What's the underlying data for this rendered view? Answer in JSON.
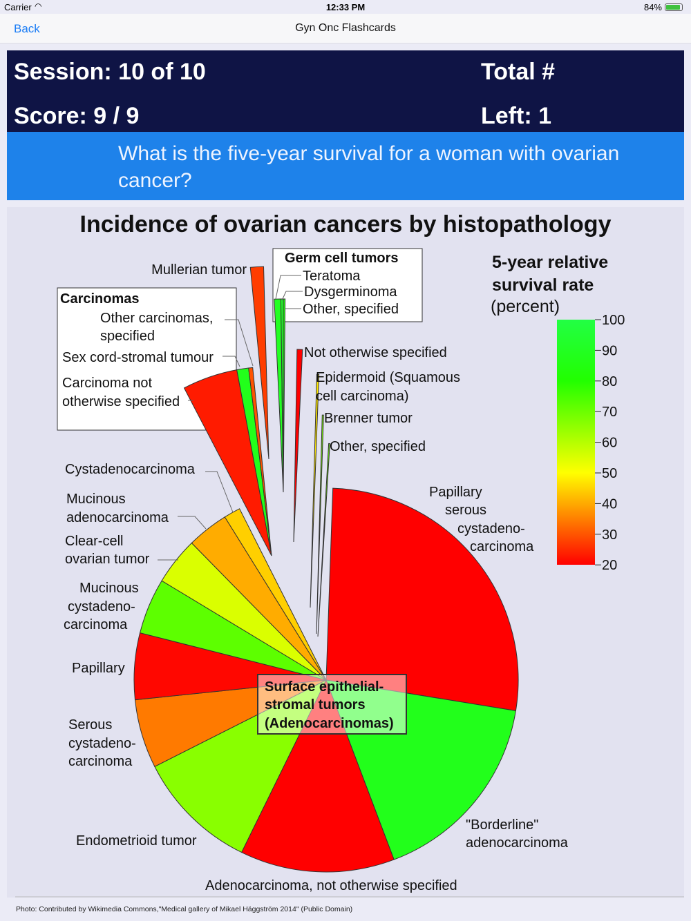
{
  "status": {
    "carrier": "Carrier",
    "time": "12:33 PM",
    "battery": "84%"
  },
  "nav": {
    "back": "Back",
    "title": "Gyn Onc Flashcards"
  },
  "session": {
    "session": "Session: 10 of 10",
    "score": "Score: 9 / 9",
    "total": "Total #",
    "left": "Left: 1"
  },
  "question": "What is the five-year survival for a woman with ovarian cancer?",
  "caption": "Photo: Contributed by Wikimedia Commons,\"Medical gallery of Mikael Häggström 2014\" (Public Domain)",
  "chart_data": {
    "type": "pie",
    "title": "Incidence of ovarian cancers by histopathology",
    "legend_title": [
      "5-year relative",
      "survival rate",
      "(percent)"
    ],
    "colorbar": {
      "range": [
        20,
        100
      ],
      "ticks": [
        "100",
        "90",
        "80",
        "70",
        "60",
        "50",
        "40",
        "30",
        "20"
      ]
    },
    "center_label": [
      "Surface epithelial-",
      "stromal tumors",
      "(Adenocarcinomas)"
    ],
    "main_slices": [
      {
        "label": "Papillary serous cystadenocarcinoma",
        "share_pct": 27,
        "survival_pct": 20
      },
      {
        "label": "\"Borderline\" adenocarcinoma",
        "share_pct": 16.7,
        "survival_pct": 88
      },
      {
        "label": "Adenocarcinoma, not otherwise specified",
        "share_pct": 13,
        "survival_pct": 20
      },
      {
        "label": "Endometrioid tumor",
        "share_pct": 10.3,
        "survival_pct": 66
      },
      {
        "label": "Serous cystadenocarcinoma",
        "share_pct": 5.8,
        "survival_pct": 38
      },
      {
        "label": "Papillary",
        "share_pct": 5.6,
        "survival_pct": 21
      },
      {
        "label": "Mucinous cystadenocarcinoma",
        "share_pct": 4.7,
        "survival_pct": 72
      },
      {
        "label": "Clear-cell ovarian tumor",
        "share_pct": 4,
        "survival_pct": 55
      },
      {
        "label": "Mucinous adenocarcinoma",
        "share_pct": 3.5,
        "survival_pct": 43
      },
      {
        "label": "Cystadenocarcinoma",
        "share_pct": 1.4,
        "survival_pct": 46
      }
    ],
    "groups": {
      "carcinomas": {
        "title": "Carcinomas",
        "slices": [
          {
            "label": "Carcinoma not otherwise specified",
            "share_pct": 4.7,
            "survival_pct": 24
          },
          {
            "label": "Sex cord-stromal tumour",
            "share_pct": 1.0,
            "survival_pct": 88
          },
          {
            "label": "Other carcinomas, specified",
            "share_pct": 0.35,
            "survival_pct": 32
          }
        ]
      },
      "mullerian": {
        "label": "Mullerian tumor",
        "share_pct": 1.1,
        "survival_pct": 29
      },
      "germ_cell": {
        "title": "Germ cell tumors",
        "slices": [
          {
            "label": "Teratoma",
            "share_pct": 0.55,
            "survival_pct": 90
          },
          {
            "label": "Dysgerminoma",
            "share_pct": 0.2,
            "survival_pct": 92
          },
          {
            "label": "Other, specified",
            "share_pct": 0.15,
            "survival_pct": 85
          }
        ]
      },
      "others": [
        {
          "label": "Not otherwise specified",
          "share_pct": 0.45,
          "survival_pct": 20
        },
        {
          "label": "Epidermoid (Squamous cell carcinoma)",
          "share_pct": 0.15,
          "survival_pct": 48
        },
        {
          "label": "Brenner tumor",
          "share_pct": 0.1,
          "survival_pct": 68
        },
        {
          "label": "Other, specified",
          "share_pct": 0.1,
          "survival_pct": 70
        }
      ]
    },
    "text_labels": {
      "mullerian": "Mullerian tumor",
      "germ_title": "Germ cell tumors",
      "teratoma": "Teratoma",
      "dysgerminoma": "Dysgerminoma",
      "germ_other": "Other, specified",
      "carc_title": "Carcinomas",
      "other_carc_1": "Other carcinomas,",
      "other_carc_2": "specified",
      "sexcord": "Sex cord-stromal tumour",
      "carc_nos_1": "Carcinoma not",
      "carc_nos_2": "otherwise specified",
      "nos": "Not otherwise specified",
      "epi_1": "Epidermoid (Squamous",
      "epi_2": "cell carcinoma)",
      "brenner": "Brenner tumor",
      "other_spec": "Other, specified",
      "cystadeno": "Cystadenocarcinoma",
      "muc_ad_1": "Mucinous",
      "muc_ad_2": "adenocarcinoma",
      "clear_1": "Clear-cell",
      "clear_2": "ovarian tumor",
      "muc_cy_1": "Mucinous",
      "muc_cy_2": "cystadeno-",
      "muc_cy_3": "carcinoma",
      "papillary": "Papillary",
      "serous_1": "Serous",
      "serous_2": "cystadeno-",
      "serous_3": "carcinoma",
      "endo": "Endometrioid tumor",
      "adeno_nos": "Adenocarcinoma, not otherwise specified",
      "border_1": "\"Borderline\"",
      "border_2": "adenocarcinoma",
      "psc_1": "Papillary",
      "psc_2": "serous",
      "psc_3": "cystadeno-",
      "psc_4": "carcinoma"
    }
  }
}
